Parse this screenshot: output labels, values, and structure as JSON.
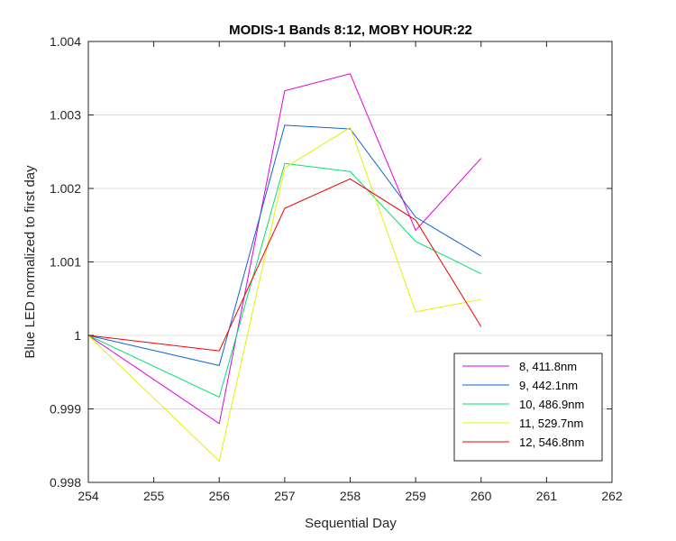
{
  "chart_data": {
    "type": "line",
    "title": "MODIS-1 Bands 8:12, MOBY HOUR:22",
    "xlabel": "Sequential Day",
    "ylabel": "Blue LED normalized to first day",
    "xlim": [
      254,
      262
    ],
    "ylim": [
      0.998,
      1.004
    ],
    "x_ticks": [
      "254",
      "255",
      "256",
      "257",
      "258",
      "259",
      "260",
      "261",
      "262"
    ],
    "y_ticks": [
      "0.998",
      "0.999",
      "1",
      "1.001",
      "1.002",
      "1.003",
      "1.004"
    ],
    "grid": "horizontal",
    "legend_position": "lower-right",
    "x": [
      254,
      256,
      257,
      258,
      259,
      260
    ],
    "series": [
      {
        "name": "8, 411.8nm",
        "color": "#e000e0",
        "values": [
          1.0,
          0.9988,
          1.00333,
          1.00356,
          1.00143,
          1.00241
        ]
      },
      {
        "name": "9, 442.1nm",
        "color": "#0a64d2",
        "values": [
          1.0,
          0.99959,
          1.00286,
          1.00281,
          1.00161,
          1.00108
        ]
      },
      {
        "name": "10, 486.9nm",
        "color": "#00e070",
        "values": [
          1.0,
          0.99916,
          1.00234,
          1.00223,
          1.00128,
          1.00084
        ]
      },
      {
        "name": "11, 529.7nm",
        "color": "#e6f000",
        "values": [
          1.0,
          0.99829,
          1.00228,
          1.00283,
          1.00032,
          1.00049
        ]
      },
      {
        "name": "12, 546.8nm",
        "color": "#f00000",
        "values": [
          1.0,
          0.99979,
          1.00173,
          1.00213,
          1.00157,
          1.00012
        ]
      }
    ]
  }
}
